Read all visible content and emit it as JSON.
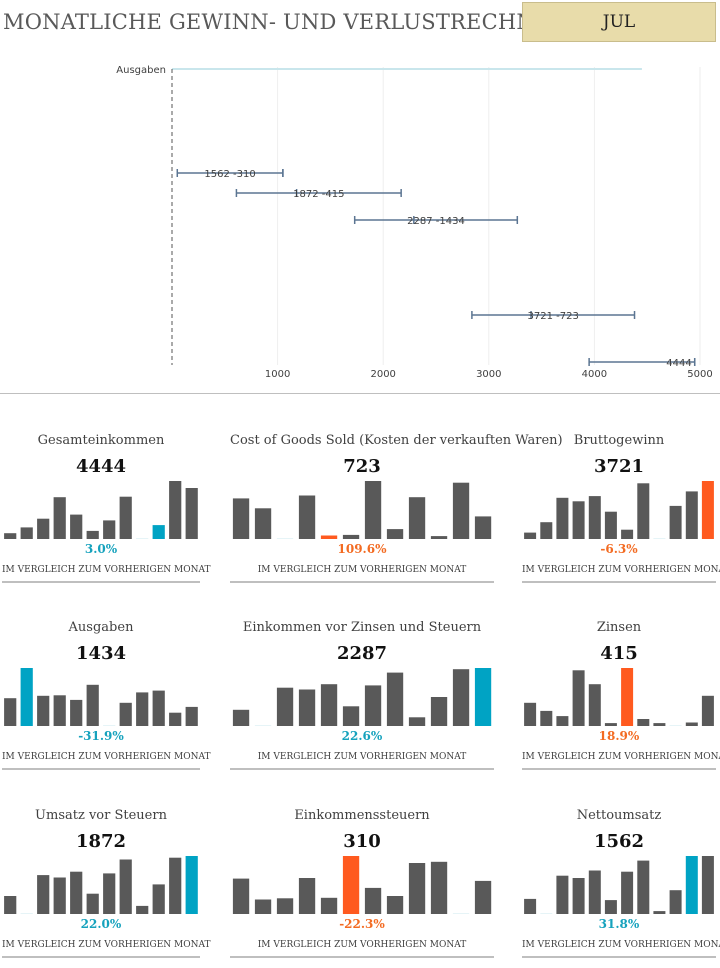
{
  "header": {
    "title": "MONATLICHE GEWINN- UND VERLUSTRECHNUNG",
    "month": "JUL"
  },
  "colors": {
    "bar": "#595959",
    "highlight_up": "#00a3c4",
    "highlight_down": "#ff5a1f",
    "pct_up": "#16a2bd",
    "pct_down": "#f36b22",
    "range": "#5b7592",
    "guide": "#a6a6a6"
  },
  "chart_data": [
    {
      "type": "waterfall-range",
      "title": "",
      "category_label": "Ausgaben",
      "xlim": [
        0,
        5000
      ],
      "xticks": [
        1000,
        2000,
        3000,
        4000,
        5000
      ],
      "rows": [
        {
          "start": 50,
          "mid": 1050,
          "end": 1050,
          "labels": [
            "1562",
            "-310"
          ]
        },
        {
          "start": 610,
          "mid": 1180,
          "end": 2170,
          "labels": [
            "1872",
            "-415"
          ]
        },
        {
          "start": 1730,
          "mid": 2290,
          "end": 3270,
          "labels": [
            "2287",
            "-1434"
          ]
        },
        {
          "start": 2840,
          "mid": 3400,
          "end": 4380,
          "labels": [
            "3721",
            "-723"
          ]
        },
        {
          "start": 3950,
          "mid": 4950,
          "end": 4950,
          "labels": [
            "4444",
            ""
          ]
        }
      ]
    }
  ],
  "kpis": [
    {
      "title": "Gesamteinkommen",
      "value": "4444",
      "pct": "3.0%",
      "dir": "up",
      "highlight": 9,
      "bars": [
        0.1,
        0.2,
        0.35,
        0.72,
        0.42,
        0.14,
        0.32,
        0.73,
        0.01,
        0.24,
        1.0,
        0.88
      ],
      "caption": "IM VERGLEICH ZUM VORHERIGEN MONAT"
    },
    {
      "title": "Cost of Goods Sold (Kosten der verkauften Waren)",
      "value": "723",
      "pct": "109.6%",
      "dir": "down",
      "highlight": 4,
      "bars": [
        0.7,
        0.53,
        0.01,
        0.75,
        0.06,
        0.07,
        1.0,
        0.17,
        0.72,
        0.05,
        0.97,
        0.39
      ],
      "caption": "IM VERGLEICH ZUM VORHERIGEN MONAT"
    },
    {
      "title": "Bruttogewinn",
      "value": "3721",
      "pct": "-6.3%",
      "dir": "down",
      "highlight": 11,
      "bars": [
        0.11,
        0.29,
        0.71,
        0.65,
        0.74,
        0.47,
        0.16,
        0.96,
        0.01,
        0.57,
        0.82,
        1.0
      ],
      "caption": "IM VERGLEICH ZUM VORHERIGEN MONAT"
    },
    {
      "title": "Ausgaben",
      "value": "1434",
      "pct": "-31.9%",
      "dir": "up",
      "highlight": 1,
      "bars": [
        0.48,
        1.0,
        0.52,
        0.53,
        0.45,
        0.71,
        0.01,
        0.4,
        0.58,
        0.61,
        0.23,
        0.33
      ],
      "caption": "IM VERGLEICH ZUM VORHERIGEN MONAT"
    },
    {
      "title": "Einkommen vor Zinsen und Steuern",
      "value": "2287",
      "pct": "22.6%",
      "dir": "up",
      "highlight": 11,
      "bars": [
        0.28,
        0.01,
        0.66,
        0.63,
        0.72,
        0.34,
        0.7,
        0.92,
        0.15,
        0.5,
        0.98,
        1.0
      ],
      "caption": "IM VERGLEICH ZUM VORHERIGEN MONAT"
    },
    {
      "title": "Zinsen",
      "value": "415",
      "pct": "18.9%",
      "dir": "down",
      "highlight": 6,
      "bars": [
        0.4,
        0.26,
        0.17,
        0.96,
        0.72,
        0.05,
        1.0,
        0.12,
        0.05,
        0.01,
        0.06,
        0.52
      ],
      "caption": "IM VERGLEICH ZUM VORHERIGEN MONAT"
    },
    {
      "title": "Umsatz vor Steuern",
      "value": "1872",
      "pct": "22.0%",
      "dir": "up",
      "highlight": 11,
      "bars": [
        0.31,
        0.01,
        0.67,
        0.63,
        0.73,
        0.35,
        0.7,
        0.94,
        0.14,
        0.51,
        0.97,
        1.0
      ],
      "caption": "IM VERGLEICH ZUM VORHERIGEN MONAT"
    },
    {
      "title": "Einkommenssteuern",
      "value": "310",
      "pct": "-22.3%",
      "dir": "down",
      "highlight": 5,
      "bars": [
        0.61,
        0.25,
        0.27,
        0.62,
        0.28,
        1.0,
        0.45,
        0.31,
        0.88,
        0.9,
        0.01,
        0.57
      ],
      "caption": "IM VERGLEICH ZUM VORHERIGEN MONAT"
    },
    {
      "title": "Nettoumsatz",
      "value": "1562",
      "pct": "31.8%",
      "dir": "up",
      "highlight": 10,
      "bars": [
        0.26,
        0.01,
        0.66,
        0.62,
        0.75,
        0.24,
        0.73,
        0.92,
        0.05,
        0.41,
        1.0,
        1.0
      ],
      "caption": "IM VERGLEICH ZUM VORHERIGEN MONAT"
    }
  ]
}
